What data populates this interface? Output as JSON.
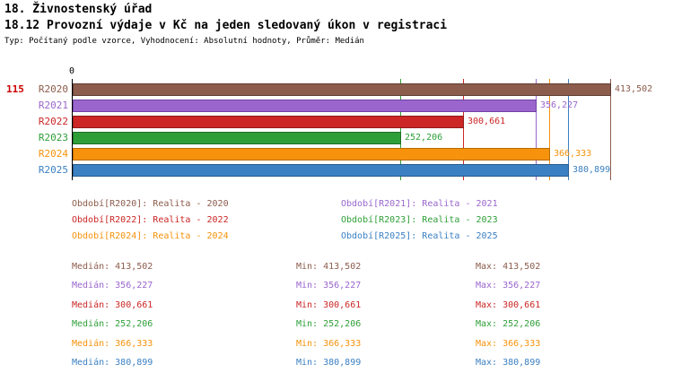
{
  "header": {
    "title": "18. Živnostenský úřad",
    "subtitle": "18.12 Provozní výdaje v Kč na jeden sledovaný úkon v registraci",
    "meta": "Typ: Počítaný podle vzorce, Vyhodnocení: Absolutní hodnoty, Průměr: Medián"
  },
  "indicator_number": "115",
  "chart_data": {
    "type": "bar",
    "orientation": "horizontal",
    "title": "18.12 Provozní výdaje v Kč na jeden sledovaný úkon v registraci",
    "xlabel": "",
    "ylabel": "",
    "x_axis": {
      "origin_label": "0",
      "min": 0,
      "max": 413502
    },
    "grid": "vertical value line per series at its median value",
    "legend_position": "below",
    "categories": [
      "R2020",
      "R2021",
      "R2022",
      "R2023",
      "R2024",
      "R2025"
    ],
    "series": [
      {
        "category": "R2020",
        "name": "Realita - 2020",
        "value": 413502,
        "value_label": "413,502",
        "color": "#8C5C4C",
        "border": "#5f3d33"
      },
      {
        "category": "R2021",
        "name": "Realita - 2021",
        "value": 356227,
        "value_label": "356,227",
        "color": "#9A66CE",
        "border": "#6f41a0"
      },
      {
        "category": "R2022",
        "name": "Realita - 2022",
        "value": 300661,
        "value_label": "300,661",
        "color": "#CC2626",
        "border": "#8f1a1a"
      },
      {
        "category": "R2023",
        "name": "Realita - 2023",
        "value": 252206,
        "value_label": "252,206",
        "color": "#2E9F38",
        "border": "#1d6f26"
      },
      {
        "category": "R2024",
        "name": "Realita - 2024",
        "value": 366333,
        "value_label": "366,333",
        "color": "#F6920B",
        "border": "#b86c00"
      },
      {
        "category": "R2025",
        "name": "Realita - 2025",
        "value": 380899,
        "value_label": "380,899",
        "color": "#3B80C2",
        "border": "#285a8c"
      }
    ]
  },
  "legend": {
    "items": [
      {
        "text": "Období[R2020]: Realita - 2020",
        "color": "#8C5C4C",
        "col": 0,
        "row": 0
      },
      {
        "text": "Období[R2021]: Realita - 2021",
        "color": "#9A66CE",
        "col": 1,
        "row": 0
      },
      {
        "text": "Období[R2022]: Realita - 2022",
        "color": "#CC2626",
        "col": 0,
        "row": 1
      },
      {
        "text": "Období[R2023]: Realita - 2023",
        "color": "#2E9F38",
        "col": 1,
        "row": 1
      },
      {
        "text": "Období[R2024]: Realita - 2024",
        "color": "#F6920B",
        "col": 0,
        "row": 2
      },
      {
        "text": "Období[R2025]: Realita - 2025",
        "color": "#3B80C2",
        "col": 1,
        "row": 2
      }
    ]
  },
  "stats": {
    "rows": [
      {
        "median": "Medián: 413,502",
        "min": "Min: 413,502",
        "max": "Max: 413,502",
        "color": "#8C5C4C"
      },
      {
        "median": "Medián: 356,227",
        "min": "Min: 356,227",
        "max": "Max: 356,227",
        "color": "#9A66CE"
      },
      {
        "median": "Medián: 300,661",
        "min": "Min: 300,661",
        "max": "Max: 300,661",
        "color": "#CC2626"
      },
      {
        "median": "Medián: 252,206",
        "min": "Min: 252,206",
        "max": "Max: 252,206",
        "color": "#2E9F38"
      },
      {
        "median": "Medián: 366,333",
        "min": "Min: 366,333",
        "max": "Max: 366,333",
        "color": "#F6920B"
      },
      {
        "median": "Medián: 380,899",
        "min": "Min: 380,899",
        "max": "Max: 380,899",
        "color": "#3B80C2"
      }
    ]
  }
}
